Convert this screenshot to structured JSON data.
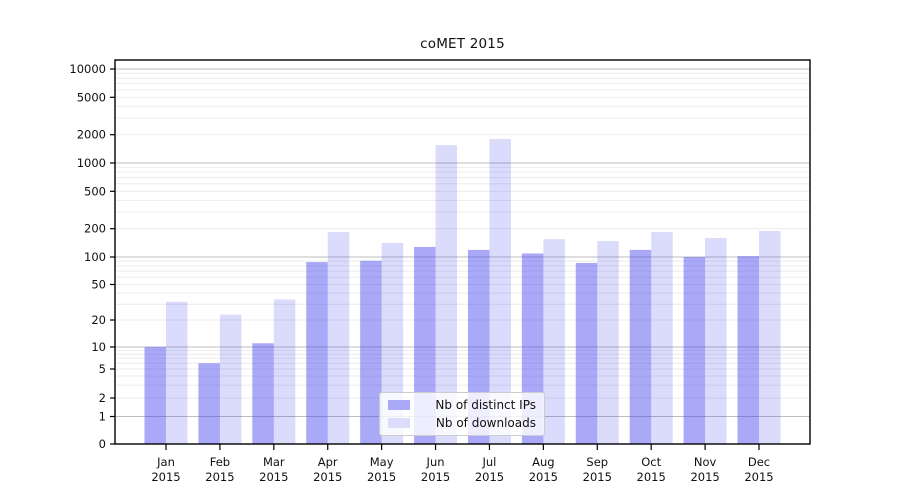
{
  "chart_data": {
    "type": "bar",
    "title": "coMET 2015",
    "categories": [
      "Jan",
      "Feb",
      "Mar",
      "Apr",
      "May",
      "Jun",
      "Jul",
      "Aug",
      "Sep",
      "Oct",
      "Nov",
      "Dec"
    ],
    "tick_year": "2015",
    "series": [
      {
        "name": "Nb of distinct IPs",
        "values": [
          10,
          6,
          11,
          88,
          91,
          128,
          119,
          109,
          86,
          119,
          100,
          102
        ],
        "color": "#4040ed",
        "alpha": 0.45,
        "swatch": "#a9a9f7"
      },
      {
        "name": "Nb of downloads",
        "values": [
          32,
          23,
          34,
          184,
          141,
          1550,
          1800,
          155,
          148,
          184,
          159,
          189
        ],
        "color": "#4040ed",
        "alpha": 0.19,
        "swatch": "#dcdcfb"
      }
    ],
    "y_ticks": [
      0,
      1,
      2,
      5,
      10,
      20,
      50,
      100,
      200,
      500,
      1000,
      2000,
      5000,
      10000
    ],
    "y_scale": "symlog",
    "ylim": [
      0,
      12500
    ],
    "xlabel": "",
    "ylabel": "",
    "grid": true,
    "gridline_major_color": "#bdbdbd",
    "gridline_minor_color": "#ebebeb",
    "legend_position": "lower center"
  }
}
